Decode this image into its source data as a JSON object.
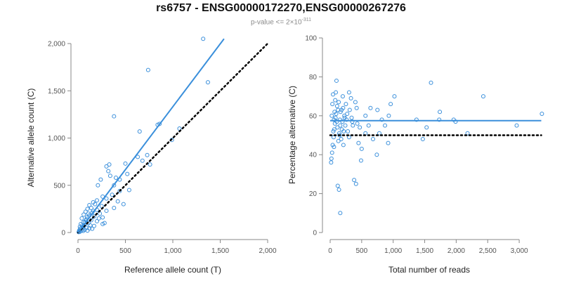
{
  "title": "rs6757 - ENSG00000172270,ENSG00000267276",
  "subtitle": {
    "prefix": "p-value <= 2×10",
    "exponent": "-311"
  },
  "colors": {
    "points": "#3a8fdb",
    "fit": "#3a8fdb",
    "reference": "#000000",
    "axis": "#888888"
  },
  "chart_data": [
    {
      "type": "scatter",
      "xlabel": "Reference allele count (T)",
      "ylabel": "Alternative allele count (C)",
      "xlim": [
        0,
        2000
      ],
      "ylim": [
        0,
        2000
      ],
      "xticks": [
        0,
        500,
        1000,
        1500,
        2000
      ],
      "xtick_labels": [
        "0",
        "500",
        "1,000",
        "1,500",
        "2,000"
      ],
      "yticks": [
        0,
        500,
        1000,
        1500,
        2000
      ],
      "ytick_labels": [
        "0",
        "500",
        "1,000",
        "1,500",
        "2,000"
      ],
      "fit_line": {
        "x": [
          0,
          1540
        ],
        "y": [
          0,
          2050
        ]
      },
      "reference_line": {
        "x": [
          0,
          2000
        ],
        "y": [
          0,
          2000
        ]
      },
      "grid": false,
      "points": [
        [
          1320,
          2050
        ],
        [
          740,
          1720
        ],
        [
          1370,
          1590
        ],
        [
          380,
          1230
        ],
        [
          840,
          1140
        ],
        [
          860,
          1150
        ],
        [
          1070,
          1100
        ],
        [
          650,
          1070
        ],
        [
          990,
          980
        ],
        [
          730,
          820
        ],
        [
          630,
          800
        ],
        [
          680,
          760
        ],
        [
          500,
          730
        ],
        [
          760,
          720
        ],
        [
          330,
          720
        ],
        [
          300,
          700
        ],
        [
          520,
          620
        ],
        [
          340,
          600
        ],
        [
          320,
          650
        ],
        [
          400,
          580
        ],
        [
          440,
          560
        ],
        [
          240,
          560
        ],
        [
          210,
          500
        ],
        [
          380,
          500
        ],
        [
          540,
          450
        ],
        [
          440,
          440
        ],
        [
          360,
          400
        ],
        [
          260,
          380
        ],
        [
          300,
          360
        ],
        [
          200,
          340
        ],
        [
          420,
          330
        ],
        [
          160,
          320
        ],
        [
          180,
          300
        ],
        [
          120,
          290
        ],
        [
          250,
          280
        ],
        [
          380,
          260
        ],
        [
          480,
          300
        ],
        [
          140,
          260
        ],
        [
          100,
          250
        ],
        [
          200,
          240
        ],
        [
          300,
          230
        ],
        [
          80,
          220
        ],
        [
          150,
          210
        ],
        [
          230,
          200
        ],
        [
          60,
          190
        ],
        [
          120,
          180
        ],
        [
          170,
          170
        ],
        [
          260,
          160
        ],
        [
          40,
          150
        ],
        [
          90,
          140
        ],
        [
          140,
          130
        ],
        [
          200,
          120
        ],
        [
          60,
          110
        ],
        [
          110,
          100
        ],
        [
          280,
          100
        ],
        [
          30,
          90
        ],
        [
          70,
          80
        ],
        [
          130,
          75
        ],
        [
          170,
          70
        ],
        [
          20,
          60
        ],
        [
          50,
          55
        ],
        [
          90,
          50
        ],
        [
          120,
          45
        ],
        [
          25,
          40
        ],
        [
          45,
          35
        ],
        [
          70,
          30
        ],
        [
          15,
          25
        ],
        [
          35,
          20
        ],
        [
          55,
          18
        ],
        [
          10,
          12
        ],
        [
          20,
          8
        ],
        [
          8,
          5
        ],
        [
          100,
          20
        ],
        [
          150,
          40
        ],
        [
          60,
          70
        ],
        [
          30,
          45
        ],
        [
          75,
          110
        ],
        [
          95,
          160
        ],
        [
          45,
          75
        ],
        [
          220,
          150
        ],
        [
          160,
          230
        ],
        [
          110,
          200
        ],
        [
          85,
          130
        ],
        [
          260,
          90
        ]
      ]
    },
    {
      "type": "scatter",
      "xlabel": "Total number of reads",
      "ylabel": "Percentage alternative (C)",
      "xlim": [
        0,
        3300
      ],
      "ylim": [
        0,
        100
      ],
      "xticks": [
        0,
        500,
        1000,
        1500,
        2000,
        2500,
        3000
      ],
      "xtick_labels": [
        "0",
        "500",
        "1,000",
        "1,500",
        "2,000",
        "2,500",
        "3,000"
      ],
      "yticks": [
        0,
        20,
        40,
        60,
        80,
        100
      ],
      "ytick_labels": [
        "0",
        "20",
        "40",
        "60",
        "80",
        "100"
      ],
      "fit_line": {
        "x": [
          0,
          3350
        ],
        "y": [
          57.5,
          57.5
        ]
      },
      "reference_line": {
        "x": [
          0,
          3350
        ],
        "y": [
          50,
          50
        ]
      },
      "grid": false,
      "points": [
        [
          3360,
          61
        ],
        [
          2430,
          70
        ],
        [
          1600,
          77
        ],
        [
          1740,
          62
        ],
        [
          1730,
          58
        ],
        [
          1960,
          58
        ],
        [
          1990,
          57
        ],
        [
          2180,
          51
        ],
        [
          2960,
          55
        ],
        [
          1370,
          58
        ],
        [
          1530,
          54
        ],
        [
          1470,
          48
        ],
        [
          1020,
          70
        ],
        [
          960,
          66
        ],
        [
          930,
          60
        ],
        [
          870,
          55
        ],
        [
          780,
          51
        ],
        [
          750,
          63
        ],
        [
          640,
          64
        ],
        [
          610,
          55
        ],
        [
          560,
          51
        ],
        [
          500,
          43
        ],
        [
          490,
          37
        ],
        [
          410,
          25
        ],
        [
          380,
          27
        ],
        [
          450,
          46
        ],
        [
          430,
          56
        ],
        [
          400,
          67
        ],
        [
          420,
          64
        ],
        [
          330,
          69
        ],
        [
          300,
          72
        ],
        [
          270,
          61
        ],
        [
          250,
          66
        ],
        [
          230,
          59
        ],
        [
          200,
          70
        ],
        [
          180,
          63
        ],
        [
          160,
          55
        ],
        [
          150,
          50
        ],
        [
          130,
          47
        ],
        [
          110,
          65
        ],
        [
          100,
          78
        ],
        [
          90,
          72
        ],
        [
          80,
          68
        ],
        [
          70,
          62
        ],
        [
          60,
          58
        ],
        [
          50,
          52
        ],
        [
          40,
          45
        ],
        [
          30,
          41
        ],
        [
          20,
          38
        ],
        [
          15,
          36
        ],
        [
          25,
          60
        ],
        [
          35,
          66
        ],
        [
          45,
          71
        ],
        [
          55,
          49
        ],
        [
          65,
          53
        ],
        [
          75,
          56
        ],
        [
          85,
          59
        ],
        [
          95,
          61
        ],
        [
          105,
          57
        ],
        [
          115,
          54
        ],
        [
          125,
          63
        ],
        [
          135,
          67
        ],
        [
          145,
          51
        ],
        [
          155,
          58
        ],
        [
          165,
          62
        ],
        [
          175,
          48
        ],
        [
          185,
          53
        ],
        [
          195,
          57
        ],
        [
          205,
          64
        ],
        [
          215,
          52
        ],
        [
          225,
          60
        ],
        [
          240,
          55
        ],
        [
          260,
          58
        ],
        [
          280,
          52
        ],
        [
          310,
          63
        ],
        [
          340,
          59
        ],
        [
          360,
          55
        ],
        [
          160,
          10
        ],
        [
          120,
          24
        ],
        [
          140,
          22
        ],
        [
          60,
          44
        ],
        [
          210,
          45
        ],
        [
          300,
          49
        ],
        [
          680,
          48
        ],
        [
          920,
          46
        ],
        [
          740,
          40
        ],
        [
          820,
          58
        ],
        [
          560,
          60
        ],
        [
          470,
          54
        ],
        [
          350,
          57
        ]
      ]
    }
  ]
}
